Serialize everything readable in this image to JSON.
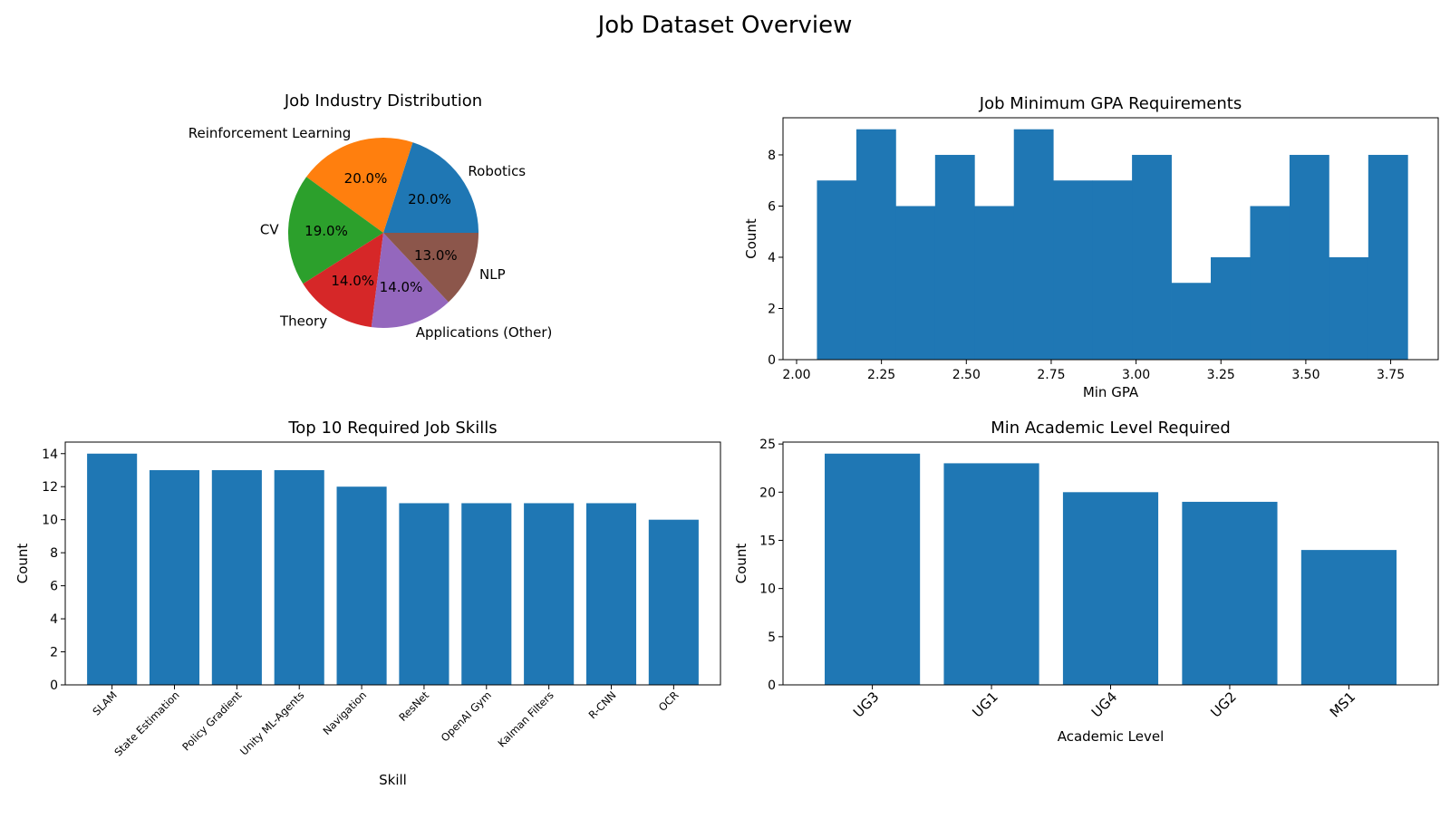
{
  "figure": {
    "title": "Job Dataset Overview"
  },
  "chart_data": [
    {
      "id": "industry",
      "type": "pie",
      "title": "Job Industry Distribution",
      "start_angle_deg": 0,
      "direction": "counterclockwise",
      "slices": [
        {
          "label": "Robotics",
          "value": 20.0,
          "pct_label": "20.0%",
          "color": "#1f77b4"
        },
        {
          "label": "Reinforcement Learning",
          "value": 20.0,
          "pct_label": "20.0%",
          "color": "#ff7f0e"
        },
        {
          "label": "CV",
          "value": 19.0,
          "pct_label": "19.0%",
          "color": "#2ca02c"
        },
        {
          "label": "Theory",
          "value": 14.0,
          "pct_label": "14.0%",
          "color": "#d62728"
        },
        {
          "label": "Applications (Other)",
          "value": 14.0,
          "pct_label": "14.0%",
          "color": "#9467bd"
        },
        {
          "label": "NLP",
          "value": 13.0,
          "pct_label": "13.0%",
          "color": "#8c564b"
        }
      ]
    },
    {
      "id": "gpa",
      "type": "bar",
      "subtype": "histogram",
      "title": "Job Minimum GPA Requirements",
      "xlabel": "Min GPA",
      "ylabel": "Count",
      "color": "#1f77b4",
      "xlim": [
        1.96,
        3.89
      ],
      "ylim": [
        0,
        9.45
      ],
      "xticks": [
        2.0,
        2.25,
        2.5,
        2.75,
        3.0,
        3.25,
        3.5,
        3.75
      ],
      "xtick_labels": [
        "2.00",
        "2.25",
        "2.50",
        "2.75",
        "3.00",
        "3.25",
        "3.50",
        "3.75"
      ],
      "yticks": [
        0,
        2,
        4,
        6,
        8
      ],
      "ytick_labels": [
        "0",
        "2",
        "4",
        "6",
        "8"
      ],
      "bin_edges": [
        2.06,
        2.176,
        2.292,
        2.408,
        2.524,
        2.64,
        2.756,
        2.872,
        2.988,
        3.104,
        3.22,
        3.336,
        3.452,
        3.568,
        3.684,
        3.8
      ],
      "counts": [
        7,
        9,
        6,
        8,
        6,
        9,
        7,
        7,
        8,
        3,
        4,
        6,
        8,
        4,
        8
      ]
    },
    {
      "id": "skills",
      "type": "bar",
      "title": "Top 10 Required Job Skills",
      "xlabel": "Skill",
      "ylabel": "Count",
      "color": "#1f77b4",
      "ylim": [
        0,
        14.7
      ],
      "yticks": [
        0,
        2,
        4,
        6,
        8,
        10,
        12,
        14
      ],
      "ytick_labels": [
        "0",
        "2",
        "4",
        "6",
        "8",
        "10",
        "12",
        "14"
      ],
      "categories": [
        "SLAM",
        "State Estimation",
        "Policy Gradient",
        "Unity ML-Agents",
        "Navigation",
        "ResNet",
        "OpenAI Gym",
        "Kalman Filters",
        "R-CNN",
        "OCR"
      ],
      "values": [
        14,
        13,
        13,
        13,
        12,
        11,
        11,
        11,
        11,
        10
      ]
    },
    {
      "id": "academic",
      "type": "bar",
      "title": "Min Academic Level Required",
      "xlabel": "Academic Level",
      "ylabel": "Count",
      "color": "#1f77b4",
      "ylim": [
        0,
        25.2
      ],
      "yticks": [
        0,
        5,
        10,
        15,
        20,
        25
      ],
      "ytick_labels": [
        "0",
        "5",
        "10",
        "15",
        "20",
        "25"
      ],
      "categories": [
        "UG3",
        "UG1",
        "UG4",
        "UG2",
        "MS1"
      ],
      "values": [
        24,
        23,
        20,
        19,
        14
      ]
    }
  ]
}
